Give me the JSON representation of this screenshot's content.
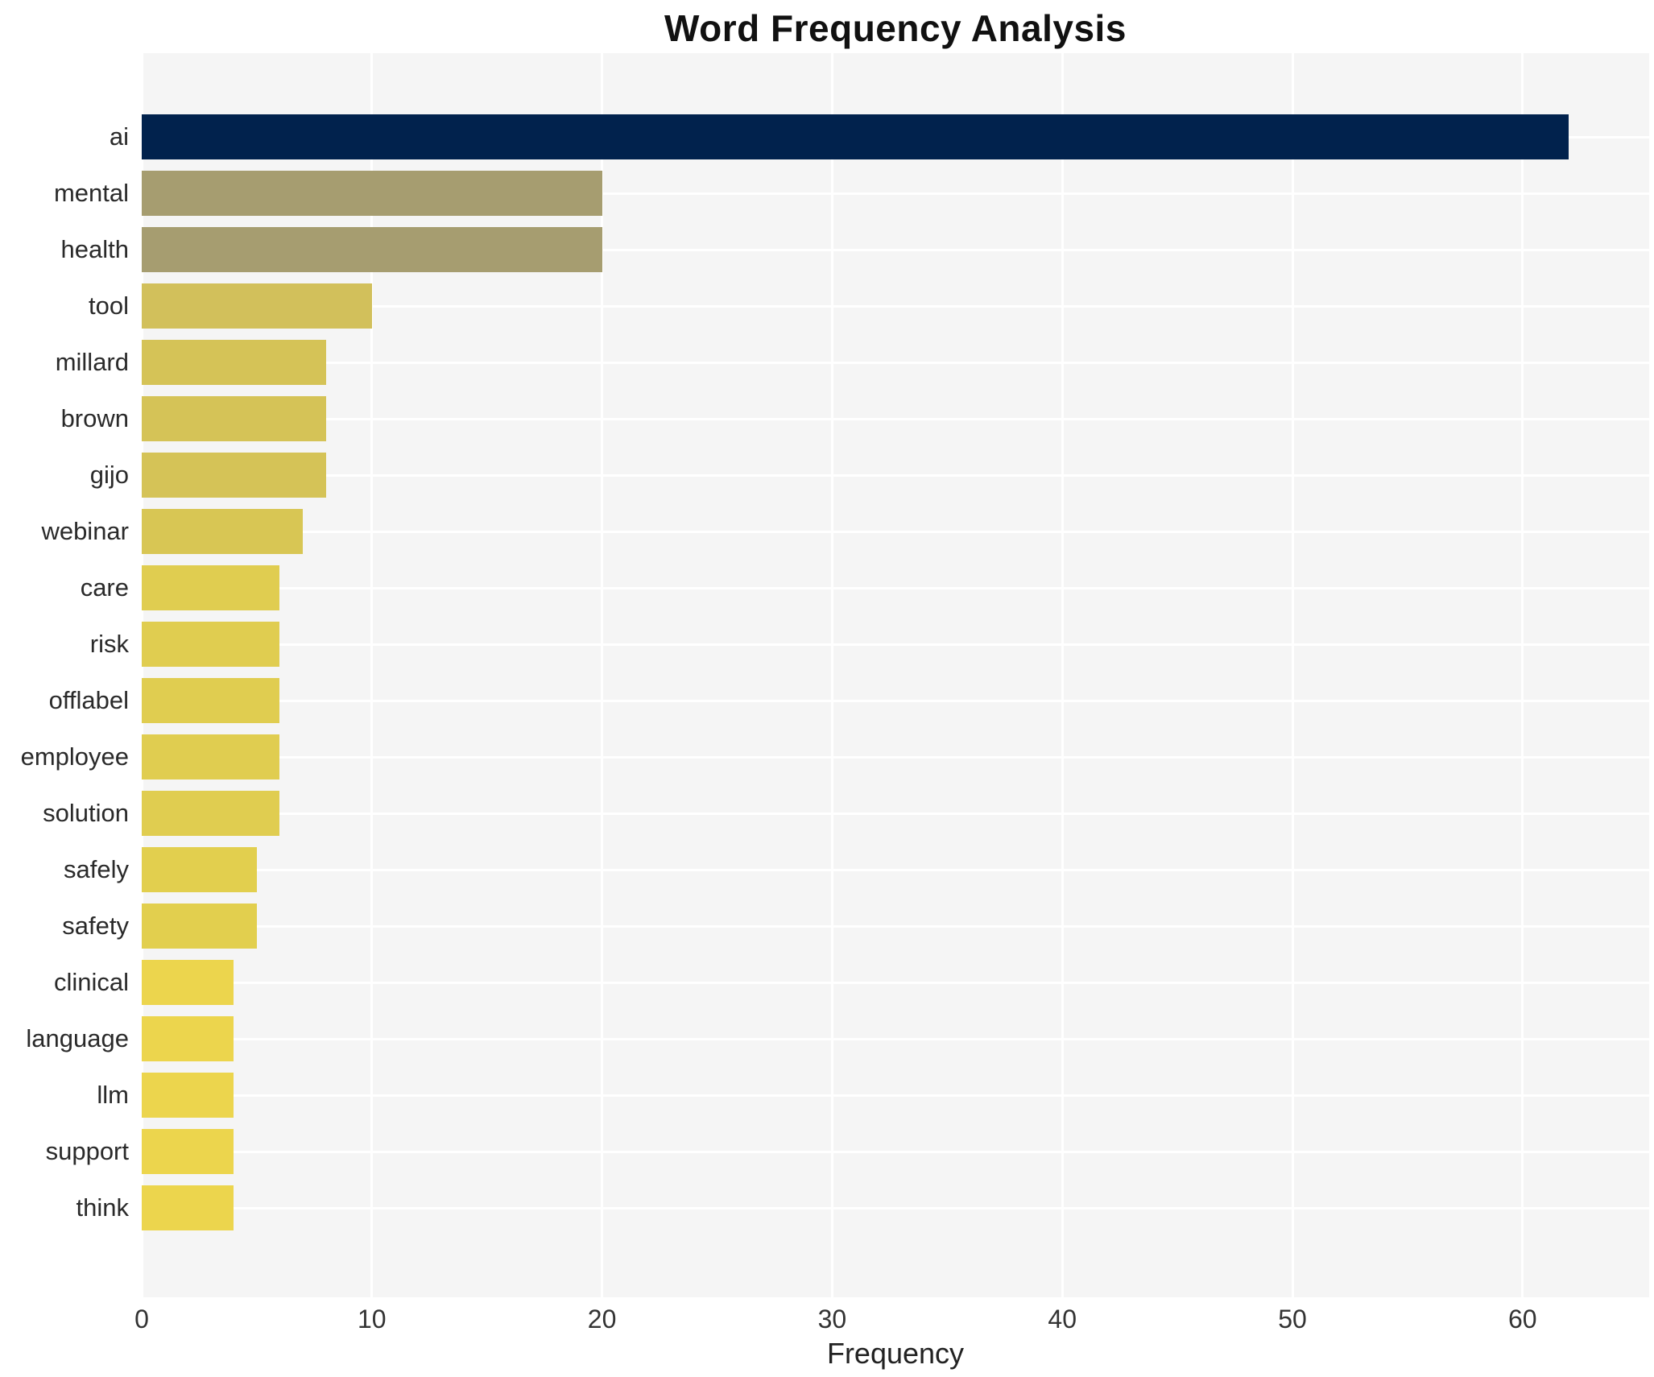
{
  "chart_data": {
    "type": "bar",
    "orientation": "horizontal",
    "title": "Word Frequency Analysis",
    "xlabel": "Frequency",
    "ylabel": "",
    "xlim": [
      0,
      65.5
    ],
    "xticks": [
      0,
      10,
      20,
      30,
      40,
      50,
      60
    ],
    "grid": true,
    "legend": false,
    "categories": [
      "ai",
      "mental",
      "health",
      "tool",
      "millard",
      "brown",
      "gijo",
      "webinar",
      "care",
      "risk",
      "offlabel",
      "employee",
      "solution",
      "safely",
      "safety",
      "clinical",
      "language",
      "llm",
      "support",
      "think"
    ],
    "values": [
      62,
      20,
      20,
      10,
      8,
      8,
      8,
      7,
      6,
      6,
      6,
      6,
      6,
      5,
      5,
      4,
      4,
      4,
      4,
      4
    ],
    "bar_colors": [
      "#01224d",
      "#a69d70",
      "#a69d70",
      "#d2c05b",
      "#d5c357",
      "#d5c357",
      "#d5c357",
      "#d8c654",
      "#e0cd50",
      "#e0cd50",
      "#e0cd50",
      "#e0cd50",
      "#e0cd50",
      "#e2cf4e",
      "#e2cf4e",
      "#ecd54d",
      "#ecd54d",
      "#ecd54d",
      "#ecd54d",
      "#ecd54d"
    ]
  },
  "style": {
    "plot_background": "#f5f5f5",
    "grid_color": "#ffffff",
    "title_color": "#111111",
    "tick_label_color": "#333333",
    "category_label_color": "#2a2a2a"
  }
}
